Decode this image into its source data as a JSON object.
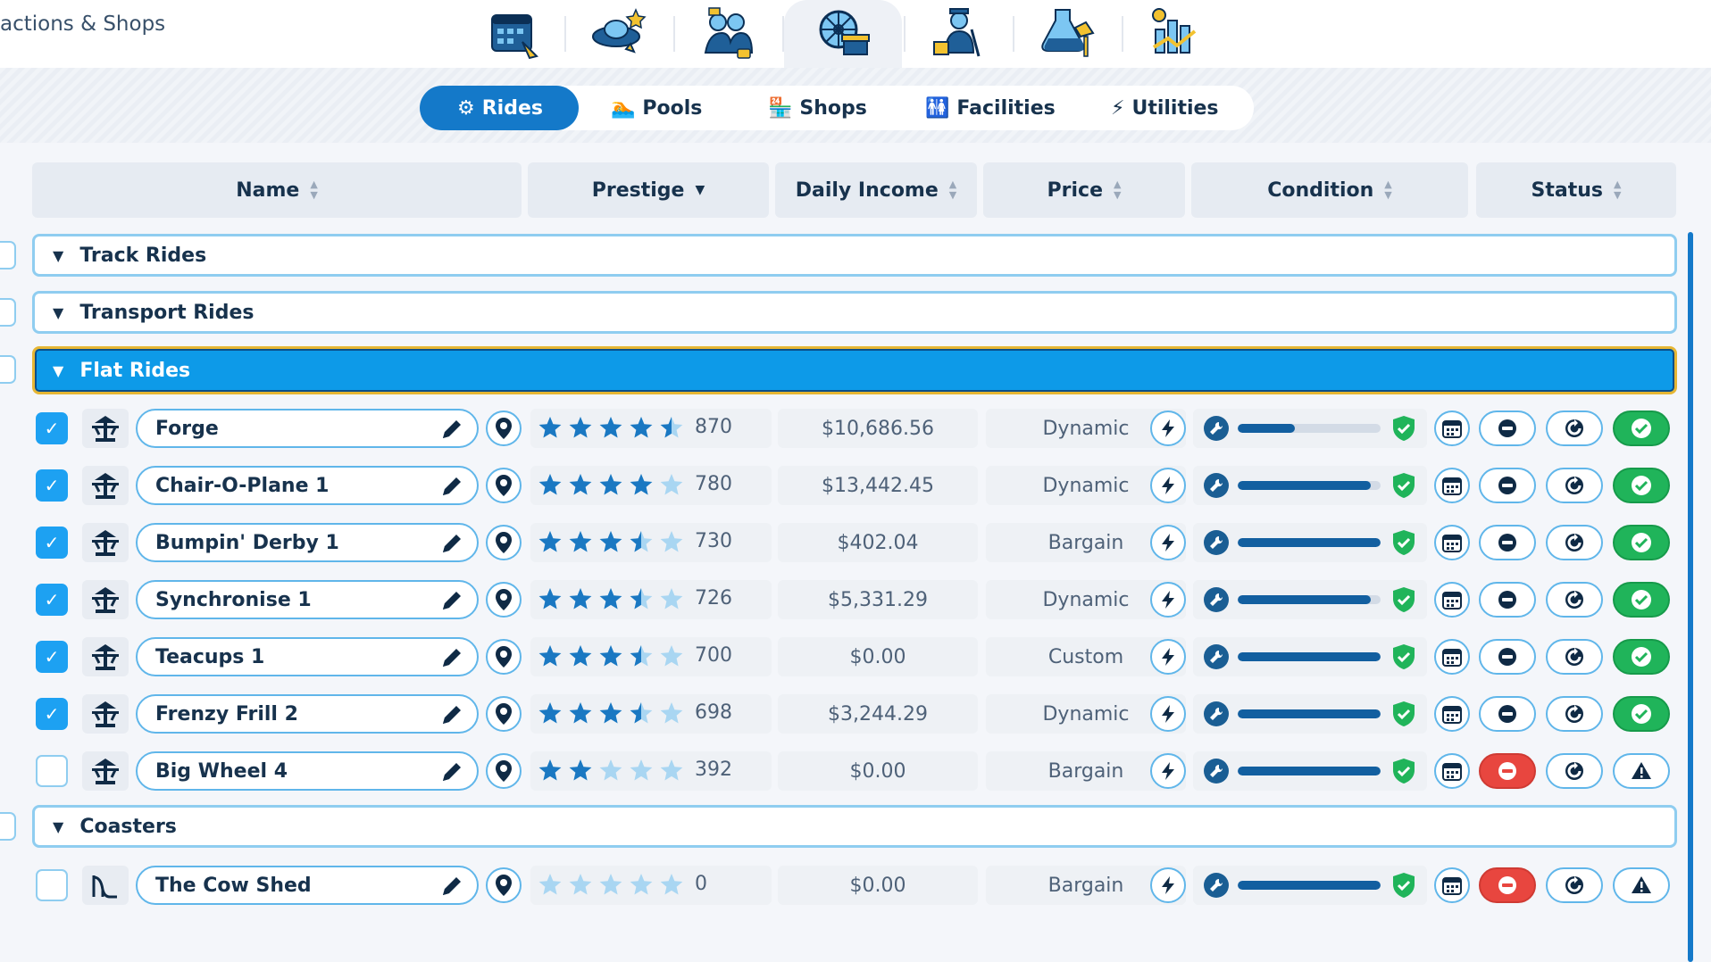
{
  "topbar": {
    "title": "actions & Shops",
    "categories": [
      {
        "icon": "calendar-icon"
      },
      {
        "icon": "ufo-icon"
      },
      {
        "icon": "staff-icon"
      },
      {
        "icon": "ferris-wheel-icon"
      },
      {
        "icon": "janitor-icon"
      },
      {
        "icon": "research-icon"
      },
      {
        "icon": "finance-chart-icon"
      }
    ],
    "active_category": 3
  },
  "subtabs": [
    {
      "label": "Rides",
      "active": true
    },
    {
      "label": "Pools"
    },
    {
      "label": "Shops"
    },
    {
      "label": "Facilities"
    },
    {
      "label": "Utilities"
    }
  ],
  "columns": {
    "name": "Name",
    "prestige": "Prestige",
    "daily_income": "Daily Income",
    "price": "Price",
    "condition": "Condition",
    "status": "Status"
  },
  "groups": {
    "track": "Track Rides",
    "transport": "Transport Rides",
    "flat": "Flat Rides",
    "coasters": "Coasters"
  },
  "rides": [
    {
      "name": "Forge",
      "checked": true,
      "stars": 4.5,
      "prestige": "870",
      "income": "$10,686.56",
      "price": "Dynamic",
      "condition": 0.4,
      "closed": false,
      "status": "open"
    },
    {
      "name": "Chair-O-Plane 1",
      "checked": true,
      "stars": 4,
      "prestige": "780",
      "income": "$13,442.45",
      "price": "Dynamic",
      "condition": 0.93,
      "closed": false,
      "status": "open"
    },
    {
      "name": "Bumpin' Derby 1",
      "checked": true,
      "stars": 3.5,
      "prestige": "730",
      "income": "$402.04",
      "price": "Bargain",
      "condition": 1.0,
      "closed": false,
      "status": "open"
    },
    {
      "name": "Synchronise 1",
      "checked": true,
      "stars": 3.5,
      "prestige": "726",
      "income": "$5,331.29",
      "price": "Dynamic",
      "condition": 0.93,
      "closed": false,
      "status": "open"
    },
    {
      "name": "Teacups 1",
      "checked": true,
      "stars": 3.5,
      "prestige": "700",
      "income": "$0.00",
      "price": "Custom",
      "condition": 1.0,
      "closed": false,
      "status": "open"
    },
    {
      "name": "Frenzy Frill 2",
      "checked": true,
      "stars": 3.5,
      "prestige": "698",
      "income": "$3,244.29",
      "price": "Dynamic",
      "condition": 1.0,
      "closed": false,
      "status": "open"
    },
    {
      "name": "Big Wheel 4",
      "checked": false,
      "stars": 2,
      "prestige": "392",
      "income": "$0.00",
      "price": "Bargain",
      "condition": 1.0,
      "closed": true,
      "status": "warning"
    }
  ],
  "coasters": [
    {
      "name": "The Cow Shed",
      "checked": false,
      "stars": 0,
      "prestige": "0",
      "income": "$0.00",
      "price": "Bargain",
      "condition": 1.0,
      "closed": true,
      "status": "warning"
    }
  ],
  "colors": {
    "accent": "#1479c9",
    "star_filled": "#1a78c2",
    "star_empty": "#a9d6f2",
    "open": "#20b45a",
    "closed": "#e8463f"
  }
}
